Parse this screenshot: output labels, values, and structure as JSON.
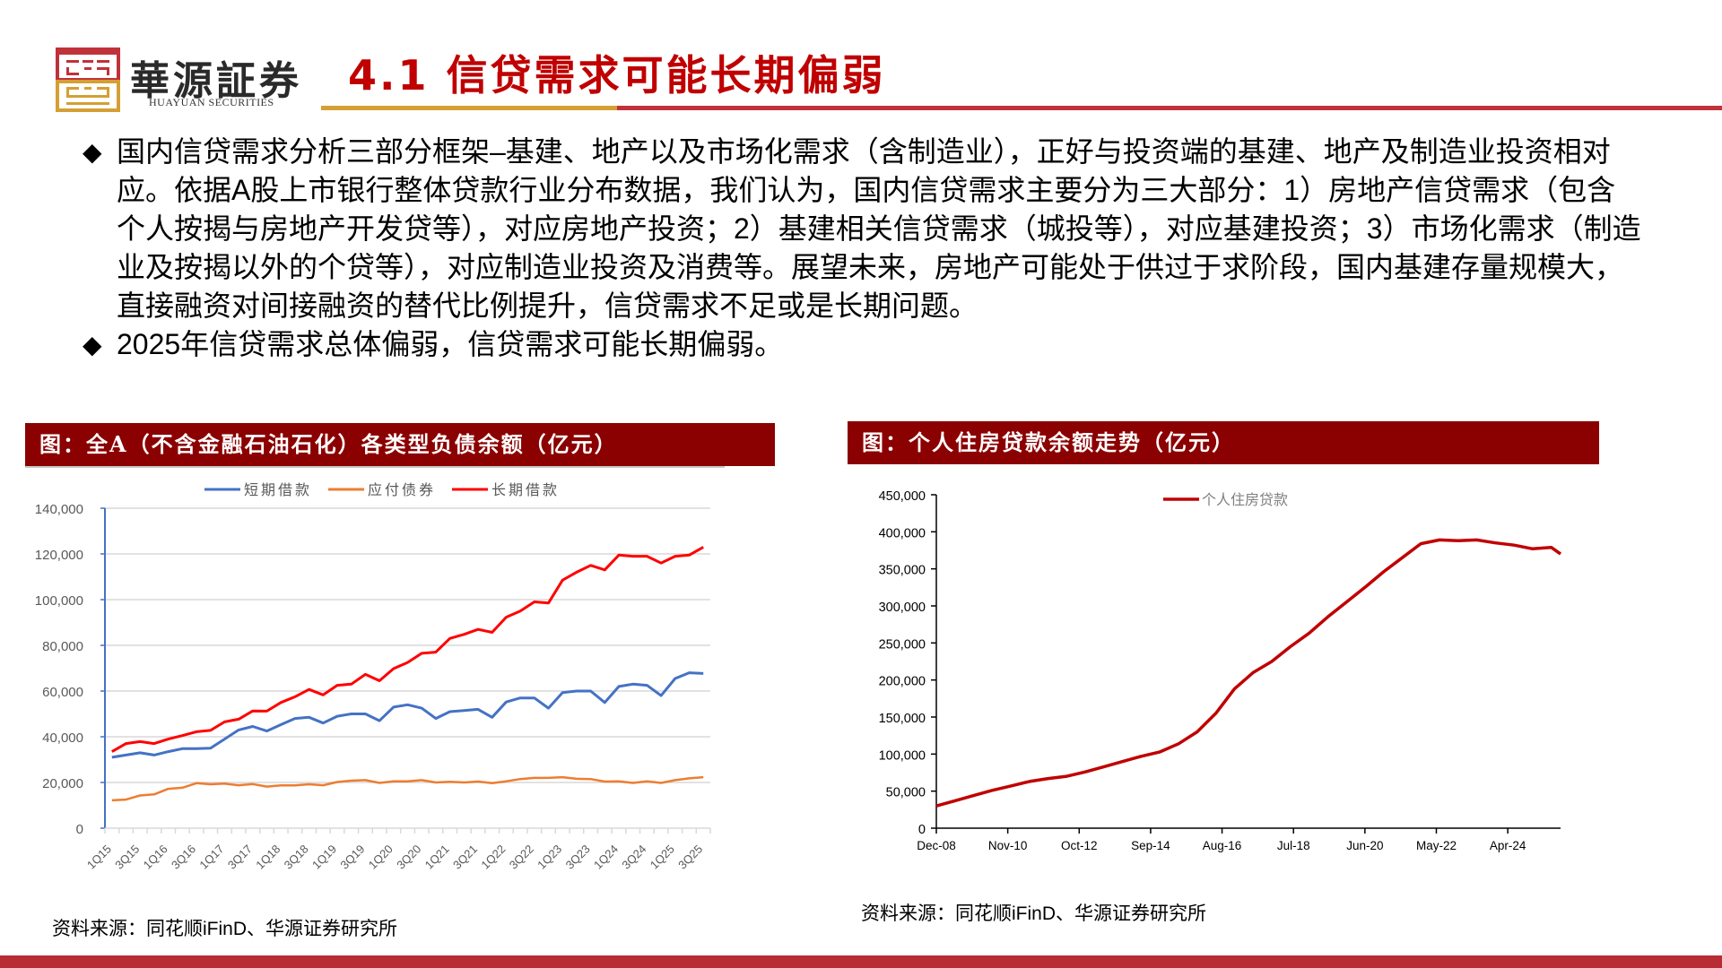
{
  "header": {
    "logo_text": "華源証券",
    "logo_subtitle": "HUAYUAN SECURITIES",
    "page_title": "4.1 信贷需求可能长期偏弱",
    "accent_gold": "#d4a033",
    "accent_red": "#c0323a"
  },
  "body": {
    "bullets": [
      {
        "text": "国内信贷需求分析三部分框架–基建、地产以及市场化需求（含制造业），正好与投资端的基建、地产及制造业投资相对应。依据A股上市银行整体贷款行业分布数据，我们认为，国内信贷需求主要分为三大部分：1）房地产信贷需求（包含个人按揭与房地产开发贷等），对应房地产投资；2）基建相关信贷需求（城投等），对应基建投资；3）市场化需求（制造业及按揭以外的个贷等），对应制造业投资及消费等。展望未来，房地产可能处于供过于求阶段，国内基建存量规模大，直接融资对间接融资的替代比例提升，信贷需求不足或是长期问题。"
      },
      {
        "text": "2025年信贷需求总体偏弱，信贷需求可能长期偏弱。"
      }
    ]
  },
  "figures": {
    "left": {
      "title": "图：全A（不含金融石油石化）各类型负债余额（亿元）",
      "source": "资料来源：同花顺iFinD、华源证券研究所"
    },
    "right": {
      "title": "图：个人住房贷款余额走势（亿元）",
      "source": "资料来源：同花顺iFinD、华源证券研究所"
    }
  },
  "chart_data": [
    {
      "type": "line",
      "title": "全A（不含金融石油石化）各类型负债余额（亿元）",
      "xlabel": "",
      "ylabel": "",
      "ylim": [
        0,
        140000
      ],
      "yticks": [
        0,
        20000,
        40000,
        60000,
        80000,
        100000,
        120000,
        140000
      ],
      "ytick_labels": [
        "0",
        "20,000",
        "40,000",
        "60,000",
        "80,000",
        "100,000",
        "120,000",
        "140,000"
      ],
      "grid": true,
      "legend_position": "top",
      "x": [
        "1Q15",
        "2Q15",
        "3Q15",
        "4Q15",
        "1Q16",
        "2Q16",
        "3Q16",
        "4Q16",
        "1Q17",
        "2Q17",
        "3Q17",
        "4Q17",
        "1Q18",
        "2Q18",
        "3Q18",
        "4Q18",
        "1Q19",
        "2Q19",
        "3Q19",
        "4Q19",
        "1Q20",
        "2Q20",
        "3Q20",
        "4Q20",
        "1Q21",
        "2Q21",
        "3Q21",
        "4Q21",
        "1Q22",
        "2Q22",
        "3Q22",
        "4Q22",
        "1Q23",
        "2Q23",
        "3Q23",
        "4Q23",
        "1Q24",
        "2Q24",
        "3Q24",
        "4Q24",
        "1Q25",
        "2Q25",
        "3Q25"
      ],
      "xtick_labels": [
        "1Q15",
        "3Q15",
        "1Q16",
        "3Q16",
        "1Q17",
        "3Q17",
        "1Q18",
        "3Q18",
        "1Q19",
        "3Q19",
        "1Q20",
        "3Q20",
        "1Q21",
        "3Q21",
        "1Q22",
        "3Q22",
        "1Q23",
        "3Q23",
        "1Q24",
        "3Q24",
        "1Q25",
        "3Q25"
      ],
      "series": [
        {
          "name": "短期借款",
          "color": "#4472c4",
          "values": [
            31000,
            32000,
            33000,
            32000,
            33500,
            34800,
            34800,
            35000,
            39000,
            43000,
            44500,
            42500,
            45300,
            48000,
            48500,
            46000,
            49000,
            50000,
            50000,
            47000,
            53000,
            54000,
            52500,
            48000,
            51000,
            51500,
            52000,
            48500,
            55200,
            57000,
            57000,
            52500,
            59300,
            60000,
            60000,
            55000,
            62000,
            63000,
            62500,
            58000,
            65500,
            68000,
            67700
          ]
        },
        {
          "name": "应付债券",
          "color": "#ed7d31",
          "values": [
            12200,
            12500,
            14300,
            14800,
            17200,
            17700,
            19700,
            19200,
            19500,
            18800,
            19300,
            18200,
            18700,
            18700,
            19200,
            18800,
            20200,
            20800,
            21000,
            19800,
            20500,
            20500,
            21000,
            20000,
            20300,
            20000,
            20400,
            19700,
            20500,
            21500,
            22000,
            22000,
            22300,
            21600,
            21500,
            20400,
            20500,
            19800,
            20500,
            19800,
            21000,
            21800,
            22300
          ]
        },
        {
          "name": "长期借款",
          "color": "#ff0000",
          "values": [
            33500,
            37000,
            37900,
            37000,
            39000,
            40500,
            42200,
            42800,
            46500,
            47700,
            51300,
            51200,
            55000,
            57500,
            60700,
            58300,
            62500,
            63000,
            67300,
            64500,
            69800,
            72500,
            76500,
            77000,
            83000,
            84800,
            87000,
            85700,
            92300,
            95000,
            99000,
            98500,
            108500,
            112000,
            115000,
            113000,
            119500,
            119000,
            119000,
            116000,
            119000,
            119500,
            123000
          ]
        }
      ]
    },
    {
      "type": "line",
      "title": "个人住房贷款余额走势（亿元）",
      "xlabel": "",
      "ylabel": "",
      "ylim": [
        0,
        450000
      ],
      "yticks": [
        0,
        50000,
        100000,
        150000,
        200000,
        250000,
        300000,
        350000,
        400000,
        450000
      ],
      "ytick_labels": [
        "0",
        "50,000",
        "100,000",
        "150,000",
        "200,000",
        "250,000",
        "300,000",
        "350,000",
        "400,000",
        "450,000"
      ],
      "grid": false,
      "legend_position": "top",
      "xtick_labels": [
        "Dec-08",
        "Nov-10",
        "Oct-12",
        "Sep-14",
        "Aug-16",
        "Jul-18",
        "Jun-20",
        "May-22",
        "Apr-24"
      ],
      "x": [
        "Dec-08",
        "Jun-09",
        "Dec-09",
        "Jun-10",
        "Dec-10",
        "Jun-11",
        "Dec-11",
        "Jun-12",
        "Dec-12",
        "Jun-13",
        "Dec-13",
        "Jun-14",
        "Dec-14",
        "Jun-15",
        "Dec-15",
        "Jun-16",
        "Dec-16",
        "Jun-17",
        "Dec-17",
        "Jun-18",
        "Dec-18",
        "Jun-19",
        "Dec-19",
        "Jun-20",
        "Dec-20",
        "Jun-21",
        "Dec-21",
        "Jun-22",
        "Dec-22",
        "Jun-23",
        "Dec-23",
        "Jun-24",
        "Dec-24",
        "Jun-25",
        "Sep-25"
      ],
      "series": [
        {
          "name": "个人住房贷款",
          "color": "#c00000",
          "values": [
            30000,
            37000,
            44000,
            51000,
            57000,
            63000,
            67000,
            70000,
            76000,
            83000,
            90000,
            97000,
            103000,
            114000,
            130000,
            155000,
            188000,
            210000,
            225000,
            245000,
            263000,
            285000,
            305000,
            325000,
            346000,
            365000,
            384000,
            389000,
            388000,
            389000,
            385000,
            382000,
            377000,
            379000,
            370000
          ]
        }
      ]
    }
  ]
}
